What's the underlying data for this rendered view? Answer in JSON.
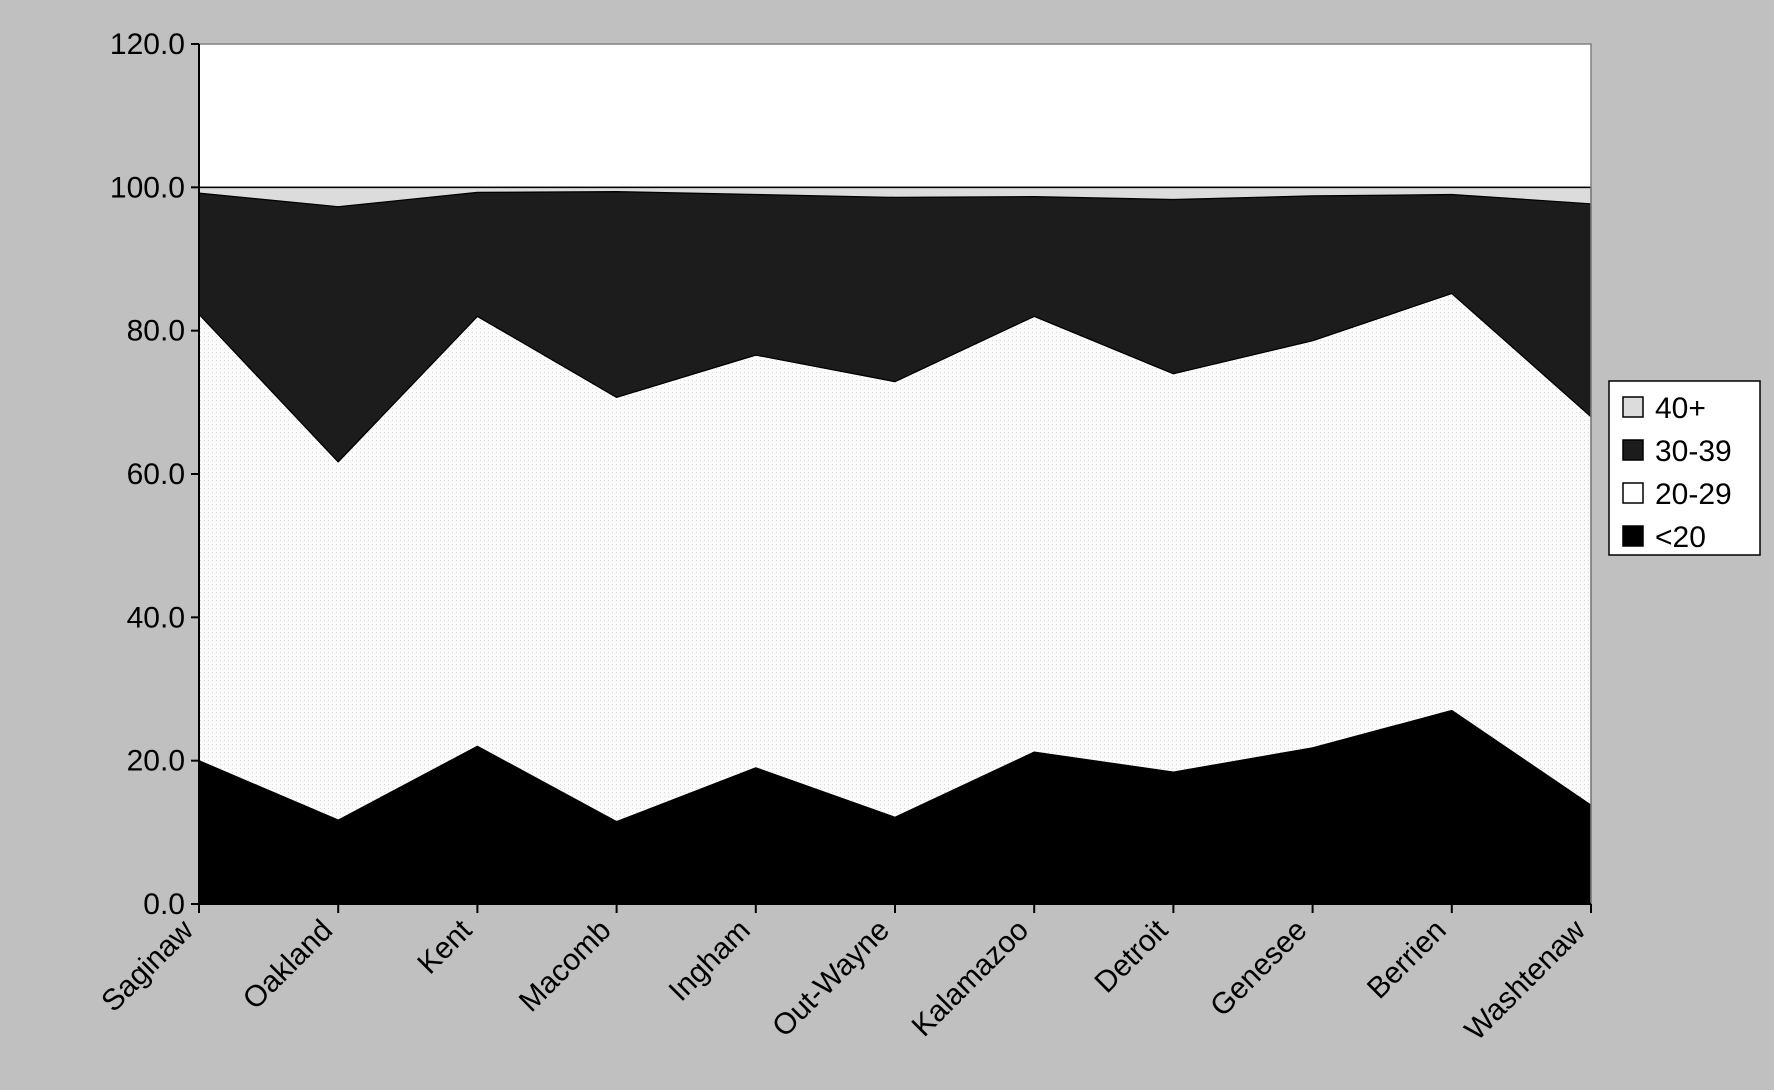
{
  "chart_data": {
    "type": "area",
    "stacked": true,
    "title": "",
    "xlabel": "",
    "ylabel": "",
    "ylim": [
      0,
      120
    ],
    "yticks": [
      "0.0",
      "20.0",
      "40.0",
      "60.0",
      "80.0",
      "100.0",
      "120.0"
    ],
    "categories": [
      "Saginaw",
      "Oakland",
      "Kent",
      "Macomb",
      "Ingham",
      "Out-Wayne",
      "Kalamazoo",
      "Detroit",
      "Genesee",
      "Berrien",
      "Washtenaw"
    ],
    "legend_position": "right",
    "grid": false,
    "series": [
      {
        "name": "<20",
        "color": "#000000",
        "values": [
          20.0,
          11.7,
          22.0,
          11.5,
          19.0,
          12.1,
          21.2,
          18.4,
          21.8,
          27.0,
          13.8
        ]
      },
      {
        "name": "20-29",
        "color": "#ffffff",
        "values": [
          62.3,
          50.0,
          60.0,
          59.2,
          57.6,
          60.8,
          60.8,
          55.6,
          56.8,
          58.2,
          54.2
        ]
      },
      {
        "name": "30-39",
        "color": "#1c1c1c",
        "values": [
          16.9,
          35.6,
          17.3,
          28.7,
          22.4,
          25.7,
          16.7,
          24.3,
          20.2,
          13.8,
          29.7
        ]
      },
      {
        "name": "40+",
        "color": "#dcdcdc",
        "values": [
          0.8,
          2.7,
          0.7,
          0.6,
          1.0,
          1.4,
          1.3,
          1.7,
          1.2,
          1.0,
          2.3
        ]
      }
    ]
  }
}
